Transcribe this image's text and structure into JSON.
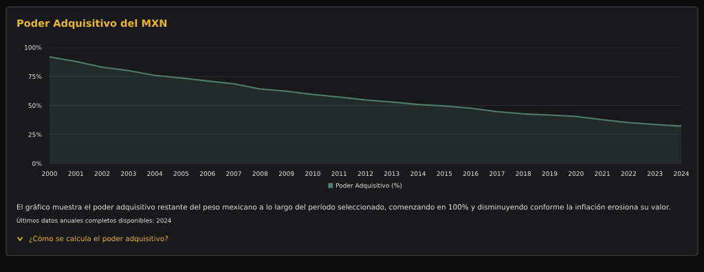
{
  "chart_data": {
    "type": "area",
    "title": "Poder Adquisitivo del MXN",
    "x": [
      2000,
      2001,
      2002,
      2003,
      2004,
      2005,
      2006,
      2007,
      2008,
      2009,
      2010,
      2011,
      2012,
      2013,
      2014,
      2015,
      2016,
      2017,
      2018,
      2019,
      2020,
      2021,
      2022,
      2023,
      2024
    ],
    "series": [
      {
        "name": "Poder Adquisitivo (%)",
        "color": "#4e7f6c",
        "values": [
          91.9,
          87.9,
          83.0,
          80.0,
          75.9,
          73.7,
          71.1,
          68.6,
          64.2,
          62.3,
          59.5,
          57.3,
          54.7,
          53.0,
          50.8,
          49.6,
          47.6,
          44.7,
          42.7,
          41.7,
          40.5,
          37.7,
          35.2,
          33.6,
          32.2
        ]
      }
    ],
    "xlim": [
      2000,
      2024
    ],
    "xticks": [
      2000,
      2001,
      2002,
      2003,
      2004,
      2005,
      2006,
      2007,
      2008,
      2009,
      2010,
      2011,
      2012,
      2013,
      2014,
      2015,
      2016,
      2017,
      2018,
      2019,
      2020,
      2021,
      2022,
      2023,
      2024
    ],
    "ylim": [
      0,
      100
    ],
    "yticks": [
      {
        "value": 0,
        "label": "0%"
      },
      {
        "value": 25,
        "label": "25%"
      },
      {
        "value": 50,
        "label": "50%"
      },
      {
        "value": 75,
        "label": "75%"
      },
      {
        "value": 100,
        "label": "100%"
      }
    ],
    "grid": "y",
    "legend": "bottom",
    "annotations": [
      "El gráfico muestra el poder adquisitivo restante del peso mexicano a lo largo del período seleccionado, comenzando en 100% y disminuyendo conforme la inflación erosiona su valor.",
      "Últimos datos anuales completos disponibles: 2024",
      "¿Cómo se calcula el poder adquisitivo?"
    ]
  }
}
